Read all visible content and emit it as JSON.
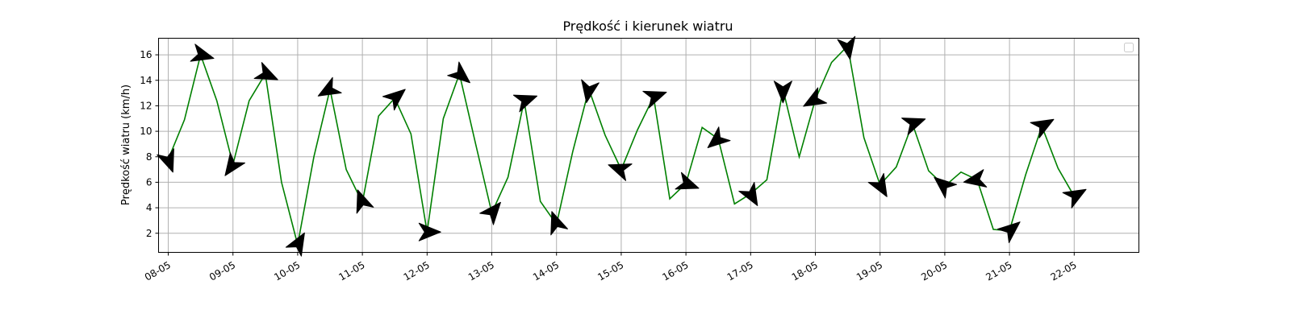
{
  "chart_data": {
    "type": "line",
    "title": "Prędkość i kierunek wiatru",
    "xlabel": "",
    "ylabel": "Prędkość wiatru (km/h)",
    "x_tick_labels": [
      "08-05",
      "09-05",
      "10-05",
      "11-05",
      "12-05",
      "13-05",
      "14-05",
      "15-05",
      "16-05",
      "17-05",
      "18-05",
      "19-05",
      "20-05",
      "21-05",
      "22-05"
    ],
    "y_ticks": [
      2,
      4,
      6,
      8,
      10,
      12,
      14,
      16
    ],
    "xlim": [
      -0.15,
      15.0
    ],
    "ylim": [
      0.5,
      17.3
    ],
    "grid": true,
    "legend": "top-right (empty)",
    "line_color": "#008000",
    "arrow_color": "#000000",
    "series": [
      {
        "day": [
          0,
          0.25,
          0.5,
          0.75,
          1,
          1.25,
          1.5,
          1.75,
          2,
          2.25,
          2.5,
          2.75,
          3,
          3.25,
          3.5,
          3.75,
          4,
          4.25,
          4.5,
          4.75,
          5,
          5.25,
          5.5,
          5.75,
          6,
          6.25,
          6.5,
          6.75,
          7,
          7.25,
          7.5,
          7.75,
          8,
          8.25,
          8.5,
          8.75,
          9,
          9.25,
          9.5,
          9.75,
          10,
          10.25,
          10.5,
          10.75,
          11,
          11.25,
          11.5,
          11.75,
          12,
          12.25,
          12.5,
          12.75,
          13,
          13.25,
          13.5,
          13.75,
          14
        ],
        "values": [
          7.8,
          10.9,
          16.0,
          12.4,
          7.4,
          12.4,
          14.5,
          6.0,
          1.1,
          8.0,
          13.3,
          7.0,
          4.4,
          11.2,
          12.6,
          9.8,
          2.1,
          11.0,
          14.5,
          9.0,
          3.6,
          6.4,
          12.4,
          4.5,
          2.7,
          8.4,
          13.3,
          9.7,
          7.0,
          10.1,
          12.7,
          4.7,
          5.9,
          10.3,
          9.4,
          4.3,
          5.1,
          6.2,
          13.3,
          8.0,
          12.5,
          15.4,
          16.7,
          9.5,
          5.8,
          7.2,
          10.6,
          6.9,
          5.7,
          6.8,
          6.2,
          2.3,
          2.2,
          6.6,
          10.4,
          7.1,
          4.9
        ],
        "direction_deg": [
          70,
          30,
          15,
          75,
          125,
          35,
          25,
          105,
          300,
          150,
          150,
          70,
          250,
          340,
          320,
          340,
          360,
          30,
          40,
          60,
          310,
          280,
          340,
          160,
          250,
          40,
          100,
          170,
          200,
          70,
          340,
          320,
          20,
          110,
          140,
          250,
          60,
          210,
          90,
          340,
          150,
          280,
          80,
          270,
          60,
          280,
          340,
          330,
          220,
          160,
          170,
          300,
          320,
          320,
          330,
          210,
          330
        ]
      }
    ]
  }
}
